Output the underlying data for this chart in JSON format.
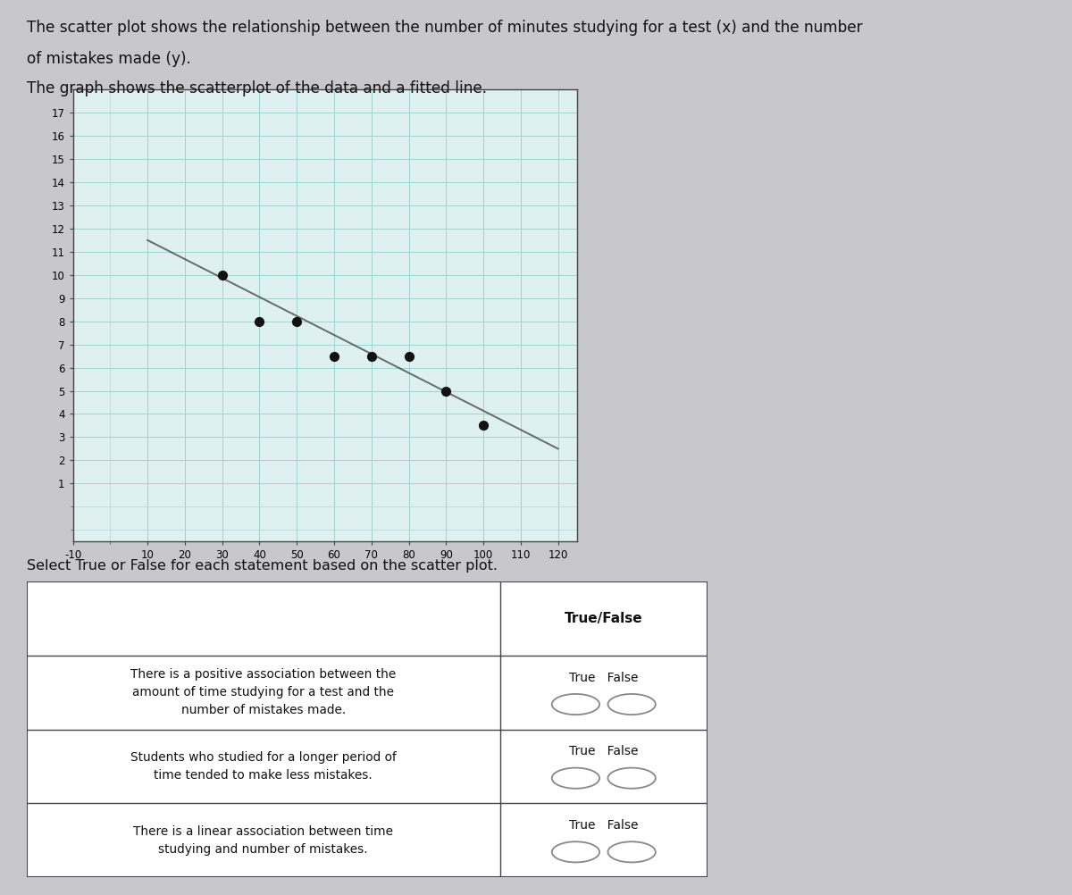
{
  "title_line1": "The scatter plot shows the relationship between the number of minutes studying for a test (x) and the number",
  "title_line2": "of mistakes made (y).",
  "title_line3": "The graph shows the scatterplot of the data and a fitted line.",
  "scatter_x": [
    30,
    40,
    50,
    60,
    70,
    80,
    90,
    100
  ],
  "scatter_y": [
    10,
    8,
    8,
    6.5,
    6.5,
    6.5,
    5,
    3.5
  ],
  "fit_line_x": [
    10,
    120
  ],
  "fit_line_y": [
    11.5,
    2.5
  ],
  "xlim": [
    -10,
    125
  ],
  "ylim": [
    -1.5,
    18
  ],
  "xtick_vals": [
    -10,
    10,
    20,
    30,
    40,
    50,
    60,
    70,
    80,
    90,
    100,
    110,
    120
  ],
  "xtick_labels": [
    "-10",
    "10",
    "20",
    "30",
    "40",
    "50",
    "60",
    "70",
    "80",
    "90",
    "100",
    "110",
    "120"
  ],
  "ytick_vals": [
    1,
    2,
    3,
    4,
    5,
    6,
    7,
    8,
    9,
    10,
    11,
    12,
    13,
    14,
    15,
    16,
    17
  ],
  "dot_color": "#111111",
  "dot_size": 65,
  "line_color": "#333333",
  "grid_teal": "#9ed4d4",
  "grid_pink": "#d4a0a0",
  "bg_color": "#dff0f0",
  "overall_bg": "#c8c8cc",
  "select_text": "Select True or False for each statement based on the scatter plot.",
  "table_header": "True/False",
  "row1_text_plain": "There is a positive association between the\namount of time studying for a test and the\nnumber of mistakes made.",
  "row2_text": "Students who studied for a longer period of\ntime tended to make less mistakes.",
  "row3_text": "There is a linear association between time\nstudying and number of mistakes."
}
